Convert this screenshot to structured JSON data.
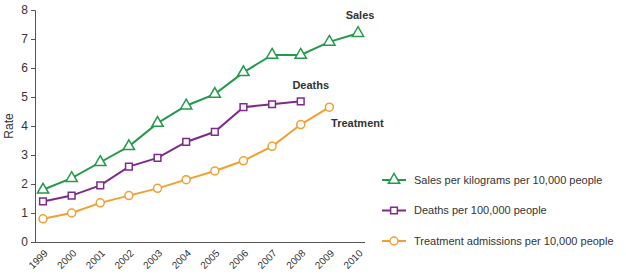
{
  "chart_data": {
    "type": "line",
    "y_label": "Rate",
    "categories": [
      "1999",
      "2000",
      "2001",
      "2002",
      "2003",
      "2004",
      "2005",
      "2006",
      "2007",
      "2008",
      "2009",
      "2010"
    ],
    "ylim": [
      0,
      8
    ],
    "yticks": [
      0,
      1,
      2,
      3,
      4,
      5,
      6,
      7,
      8
    ],
    "grid": false,
    "legend": "right",
    "annotations": [
      "Sales",
      "Deaths",
      "Treatment"
    ],
    "series": [
      {
        "name": "Sales per kilograms per 10,000 people",
        "color": "#24994a",
        "marker": "triangle",
        "values": [
          1.8,
          2.2,
          2.75,
          3.3,
          4.1,
          4.7,
          5.1,
          5.85,
          6.45,
          6.45,
          6.9,
          7.2
        ]
      },
      {
        "name": "Deaths per 100,000 people",
        "color": "#7d2b8b",
        "marker": "square",
        "values": [
          1.4,
          1.6,
          1.95,
          2.6,
          2.9,
          3.45,
          3.8,
          4.65,
          4.75,
          4.85,
          null,
          null
        ]
      },
      {
        "name": "Treatment admissions per 10,000 people",
        "color": "#f0a030",
        "marker": "circle",
        "values": [
          0.8,
          1.0,
          1.35,
          1.6,
          1.85,
          2.15,
          2.45,
          2.8,
          3.3,
          4.05,
          4.65,
          null
        ]
      }
    ]
  }
}
